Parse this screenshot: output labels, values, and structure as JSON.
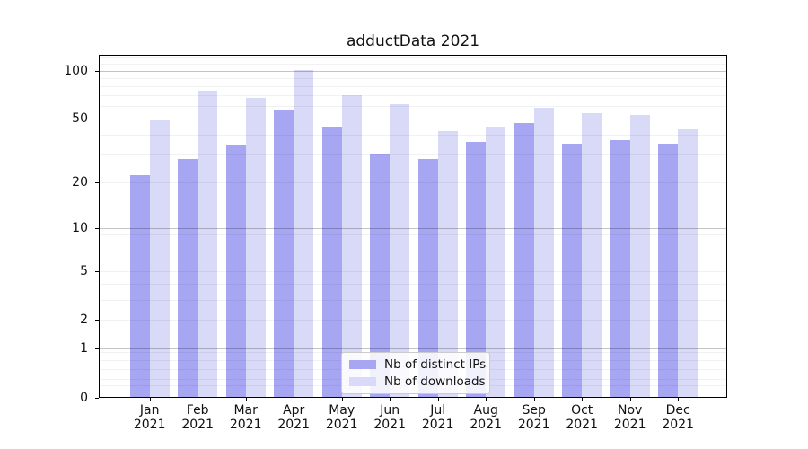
{
  "title": "adductData 2021",
  "chart_data": {
    "type": "bar",
    "title": "adductData 2021",
    "categories": [
      "Jan",
      "Feb",
      "Mar",
      "Apr",
      "May",
      "Jun",
      "Jul",
      "Aug",
      "Sep",
      "Oct",
      "Nov",
      "Dec"
    ],
    "year_label": "2021",
    "series": [
      {
        "name": "Nb of distinct IPs",
        "color": "#a6a6f2",
        "values": [
          22,
          28,
          34,
          57,
          45,
          30,
          28,
          36,
          47,
          35,
          37,
          35
        ]
      },
      {
        "name": "Nb of downloads",
        "color": "#d9d9f8",
        "values": [
          49,
          75,
          68,
          100,
          70,
          62,
          42,
          45,
          59,
          54,
          53,
          43
        ]
      }
    ],
    "yscale": "log1p",
    "yticks": [
      0,
      1,
      2,
      5,
      10,
      20,
      50,
      100
    ],
    "major_grid_values": [
      1,
      10,
      100
    ],
    "ylim": [
      0,
      125
    ],
    "xlabel": "",
    "ylabel": "",
    "grid": "on",
    "legend_position": "lower center",
    "background": "#ffffff",
    "axis_color": "#000000"
  }
}
